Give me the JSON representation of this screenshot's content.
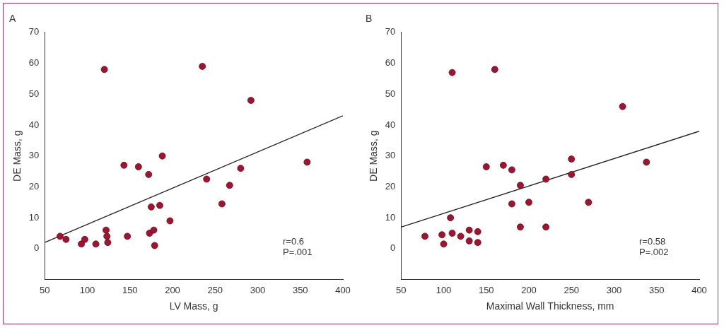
{
  "chart_data": [
    {
      "type": "scatter",
      "title": "A",
      "x_label": "LV Mass, g",
      "y_label": "DE Mass, g",
      "xlim": [
        50,
        400
      ],
      "xticks": [
        50,
        100,
        150,
        200,
        250,
        300,
        350,
        400
      ],
      "ylim": [
        -10,
        70
      ],
      "yticks": [
        0,
        10,
        20,
        30,
        40,
        50,
        60,
        70
      ],
      "grid": false,
      "annotations": [
        "r=0.6",
        "P=.001"
      ],
      "series": [
        {
          "type": "scatter",
          "color": "#a3132f",
          "marker": "circle",
          "x": [
            68,
            75,
            93,
            97,
            110,
            120,
            122,
            123,
            124,
            143,
            147,
            160,
            172,
            173,
            175,
            178,
            179,
            185,
            188,
            197,
            235,
            240,
            258,
            267,
            280,
            292,
            358
          ],
          "values": [
            4,
            3,
            1.5,
            3,
            1.5,
            58,
            6,
            4,
            2,
            27,
            4,
            26.5,
            24,
            5,
            13.5,
            6,
            1,
            14,
            30,
            9,
            59,
            22.5,
            14.5,
            20.5,
            26,
            48,
            28
          ]
        },
        {
          "type": "line",
          "color": "#222222",
          "line_style": "solid",
          "x": [
            50,
            400
          ],
          "values": [
            2,
            43
          ]
        }
      ]
    },
    {
      "type": "scatter",
      "title": "B",
      "x_label": "Maximal Wall Thickness, mm",
      "y_label": "DE Mass, g",
      "xlim": [
        50,
        400
      ],
      "xticks": [
        50,
        100,
        150,
        200,
        250,
        300,
        350,
        400
      ],
      "ylim": [
        -10,
        70
      ],
      "yticks": [
        0,
        10,
        20,
        30,
        40,
        50,
        60,
        70
      ],
      "grid": false,
      "annotations": [
        "r=0.58",
        "P=.002"
      ],
      "series": [
        {
          "type": "scatter",
          "color": "#a3132f",
          "marker": "circle",
          "x": [
            78,
            98,
            100,
            108,
            110,
            110,
            120,
            130,
            130,
            140,
            140,
            150,
            160,
            170,
            180,
            180,
            190,
            190,
            200,
            220,
            220,
            250,
            250,
            270,
            310,
            338
          ],
          "values": [
            4,
            4.5,
            1.5,
            10,
            57,
            5,
            4,
            2.5,
            6,
            2,
            5.5,
            26.5,
            58,
            27,
            25.5,
            14.5,
            20.5,
            7,
            15,
            22.5,
            7,
            29,
            24,
            15,
            46,
            28
          ]
        },
        {
          "type": "line",
          "color": "#222222",
          "line_style": "solid",
          "x": [
            50,
            400
          ],
          "values": [
            7,
            38
          ]
        }
      ]
    }
  ]
}
